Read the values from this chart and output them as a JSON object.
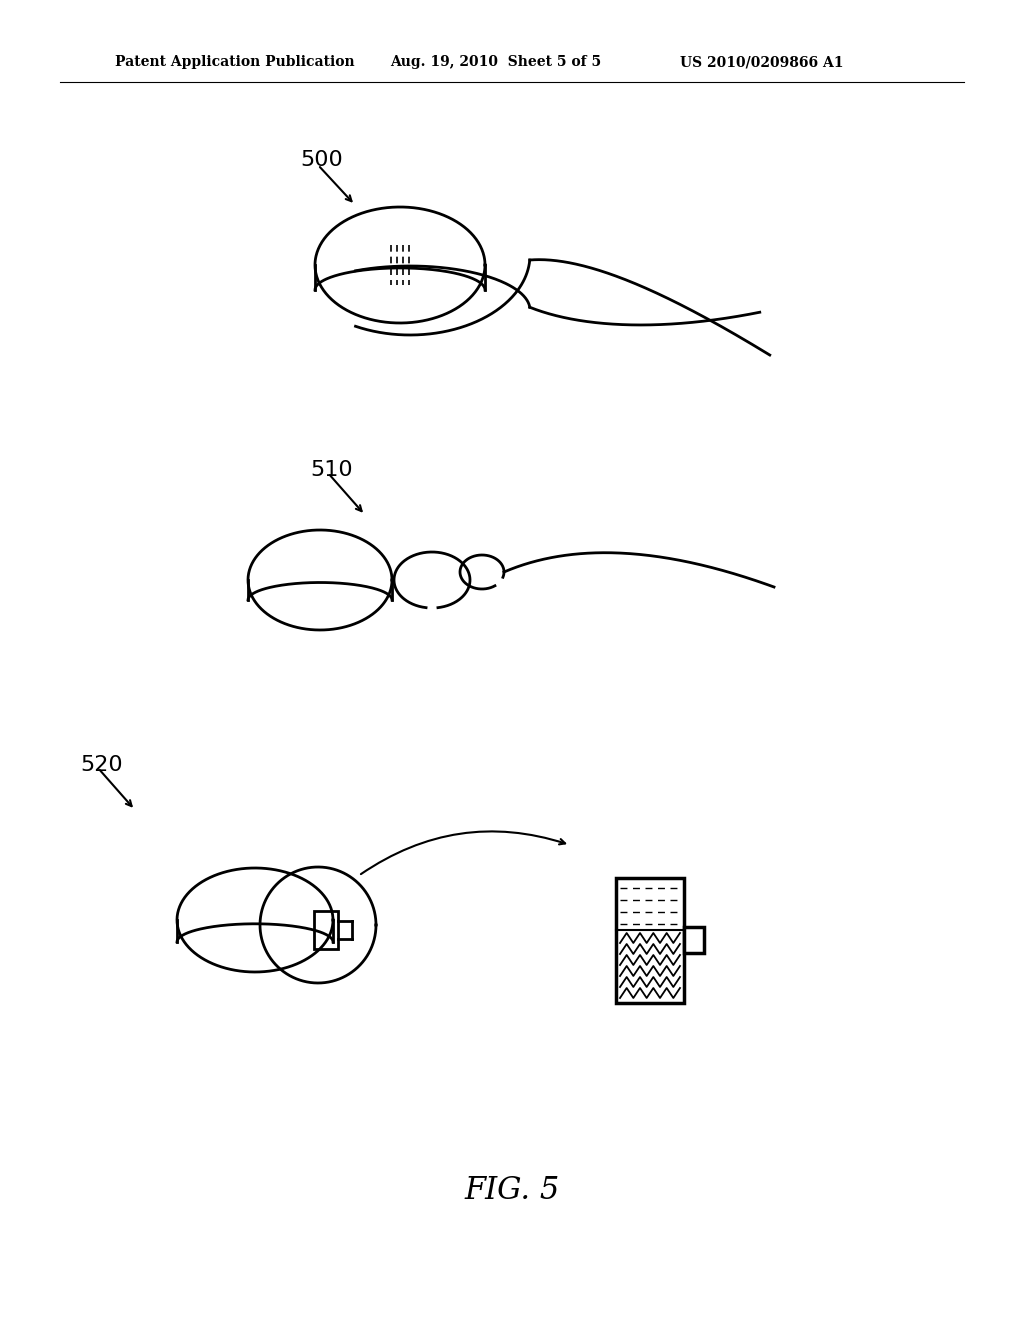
{
  "bg_color": "#ffffff",
  "line_color": "#000000",
  "header_left": "Patent Application Publication",
  "header_mid": "Aug. 19, 2010  Sheet 5 of 5",
  "header_right": "US 2010/0209866 A1",
  "fig_label": "FIG. 5",
  "label_500": "500",
  "label_510": "510",
  "label_520": "520"
}
